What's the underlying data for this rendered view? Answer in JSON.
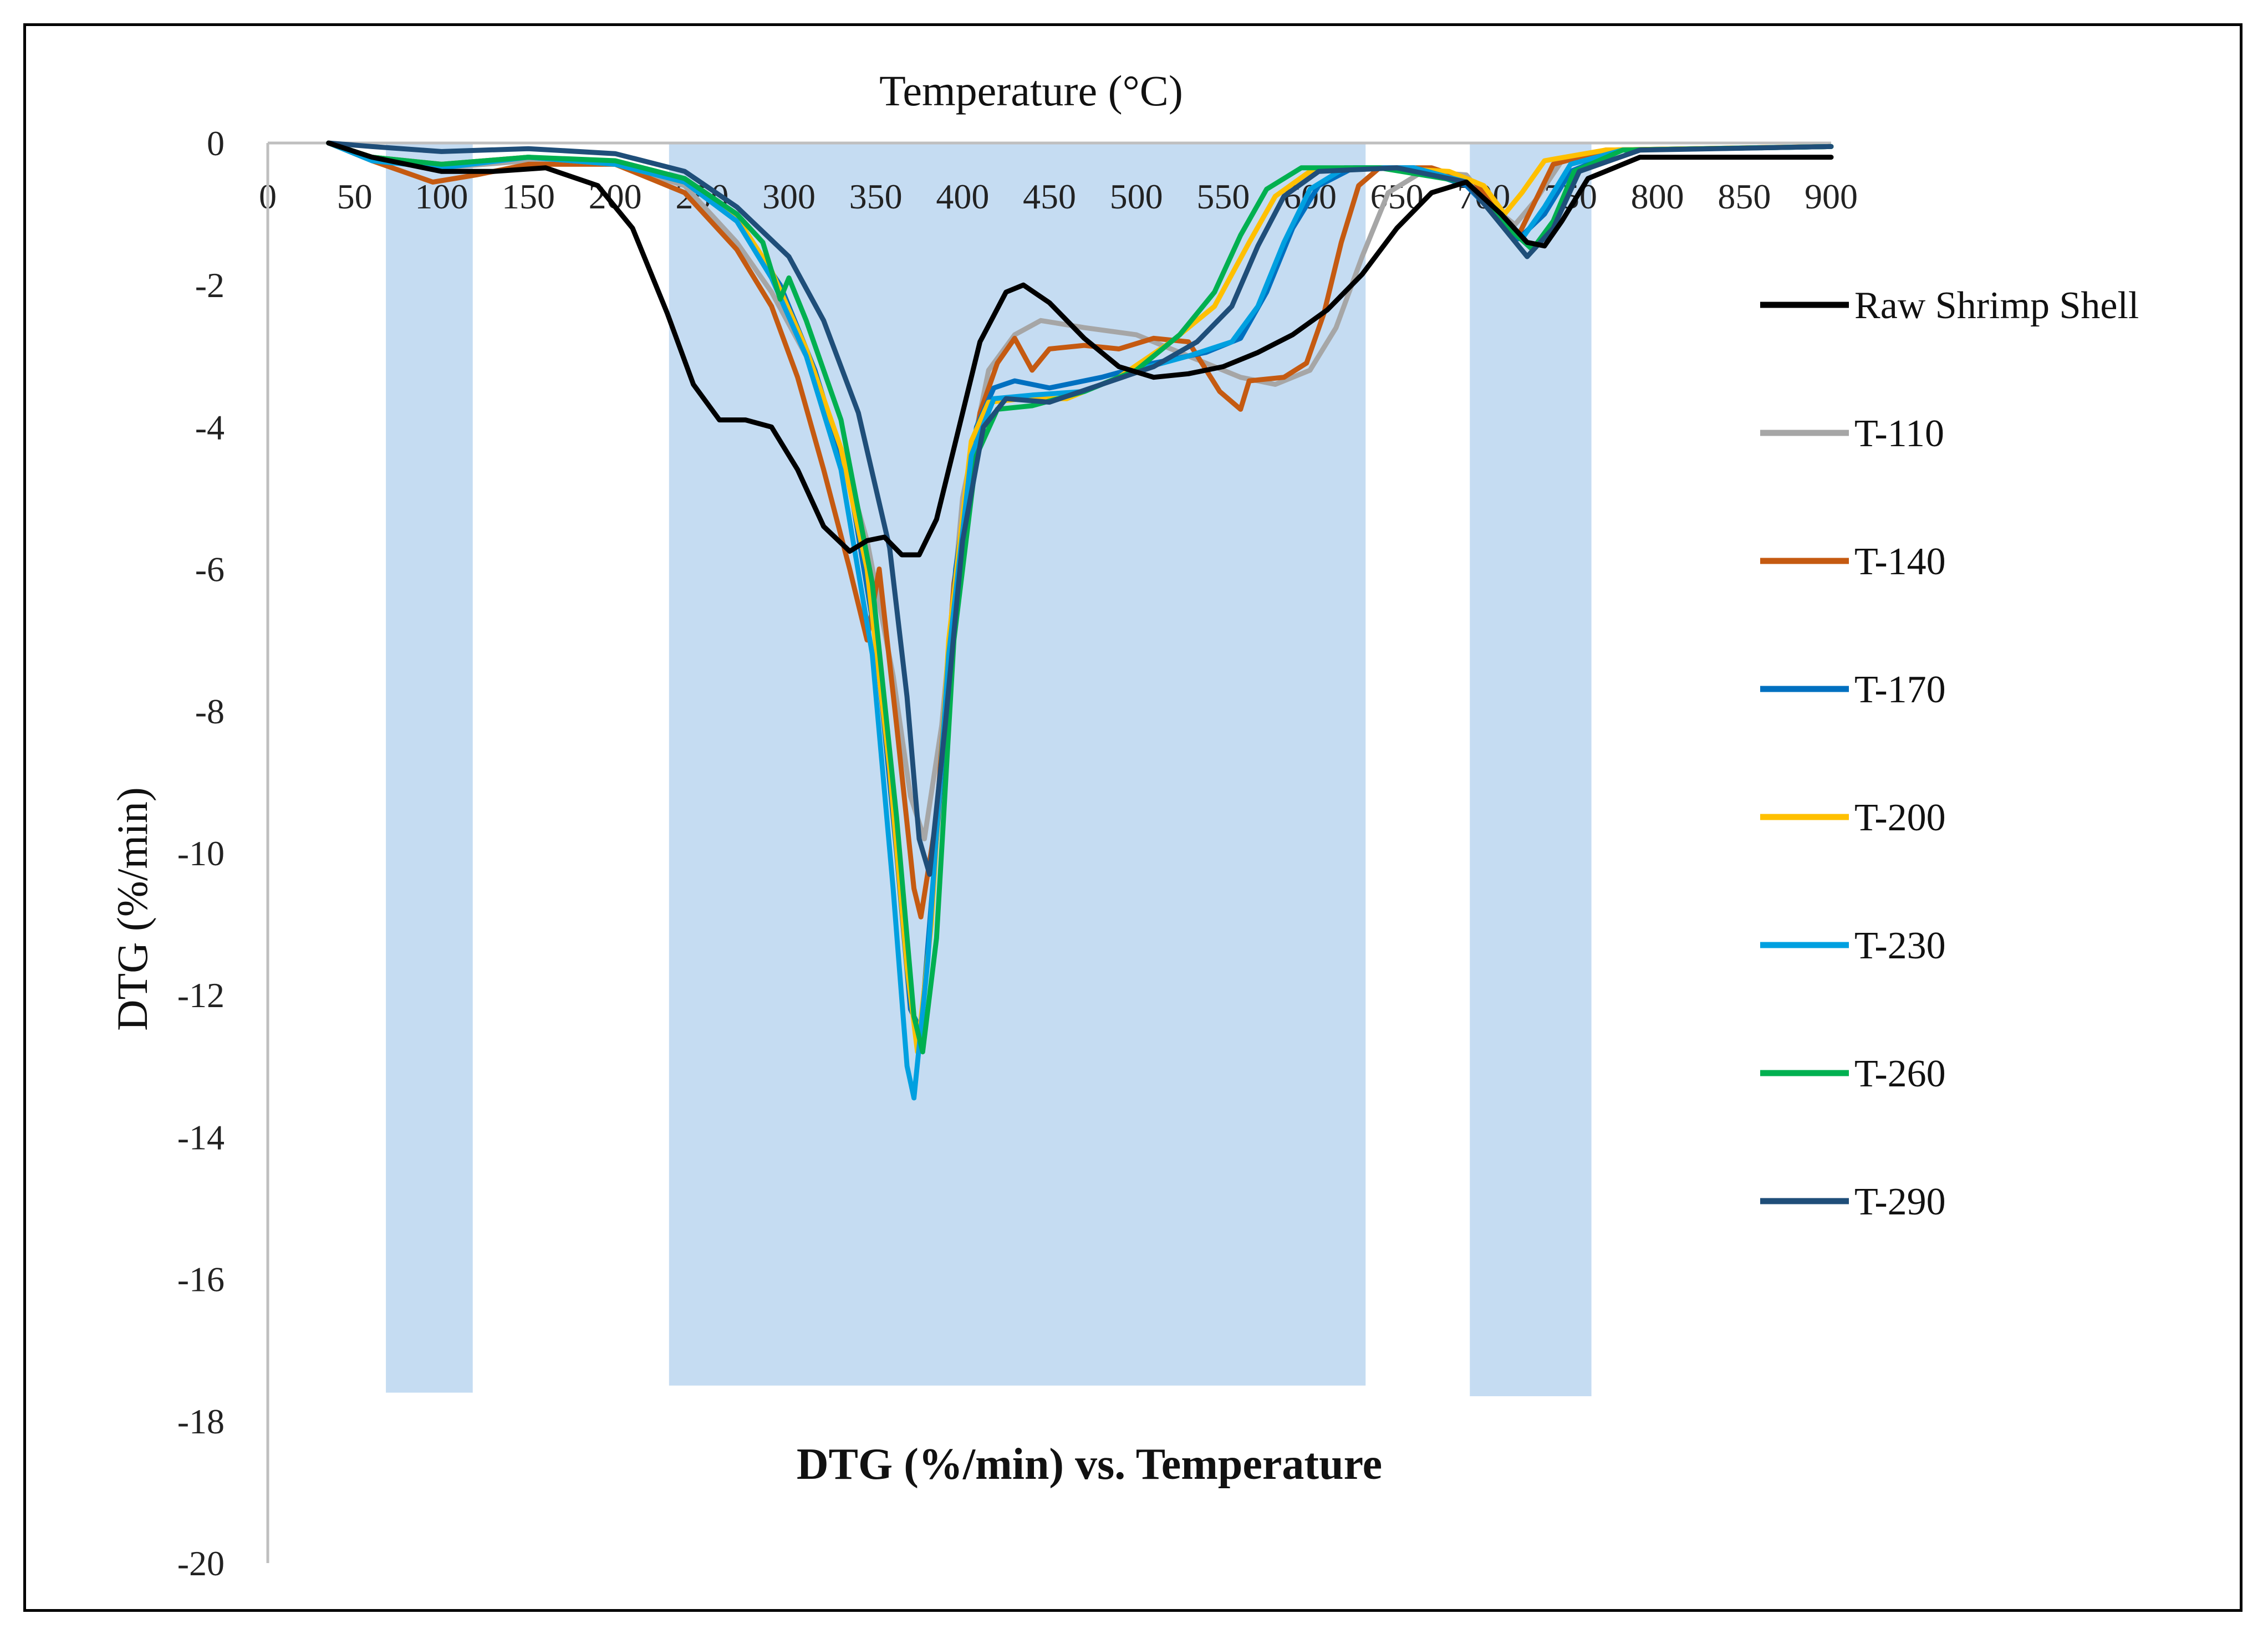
{
  "chart_data": {
    "type": "line",
    "title": "DTG (%/min) vs. Temperature",
    "xlabel": "Temperature (°C)",
    "ylabel": "DTG (%/min)",
    "x_axis_position": "top",
    "xlim": [
      0,
      900
    ],
    "ylim": [
      -20,
      0
    ],
    "x_ticks": [
      0,
      50,
      100,
      150,
      200,
      250,
      300,
      350,
      400,
      450,
      500,
      550,
      600,
      650,
      700,
      750,
      800,
      850,
      900
    ],
    "y_ticks": [
      0,
      -2,
      -4,
      -6,
      -8,
      -10,
      -12,
      -14,
      -16,
      -18,
      -20
    ],
    "legend_position": "right",
    "shaded_ranges": [
      {
        "x0": 68,
        "x1": 118,
        "y0": 0,
        "y1": -17.6
      },
      {
        "x0": 231,
        "x1": 632,
        "y0": 0,
        "y1": -17.5
      },
      {
        "x0": 692,
        "x1": 762,
        "y0": 0,
        "y1": -17.65
      }
    ],
    "series": [
      {
        "name": "Raw Shrimp Shell",
        "color": "#000000",
        "points": [
          [
            35,
            0
          ],
          [
            60,
            -0.2
          ],
          [
            100,
            -0.4
          ],
          [
            130,
            -0.4
          ],
          [
            160,
            -0.35
          ],
          [
            190,
            -0.6
          ],
          [
            210,
            -1.2
          ],
          [
            230,
            -2.4
          ],
          [
            245,
            -3.4
          ],
          [
            260,
            -3.9
          ],
          [
            275,
            -3.9
          ],
          [
            290,
            -4.0
          ],
          [
            305,
            -4.6
          ],
          [
            320,
            -5.4
          ],
          [
            335,
            -5.75
          ],
          [
            345,
            -5.6
          ],
          [
            355,
            -5.55
          ],
          [
            365,
            -5.8
          ],
          [
            375,
            -5.8
          ],
          [
            385,
            -5.3
          ],
          [
            395,
            -4.3
          ],
          [
            410,
            -2.8
          ],
          [
            425,
            -2.1
          ],
          [
            435,
            -2.0
          ],
          [
            450,
            -2.25
          ],
          [
            470,
            -2.75
          ],
          [
            490,
            -3.15
          ],
          [
            510,
            -3.3
          ],
          [
            530,
            -3.25
          ],
          [
            550,
            -3.15
          ],
          [
            570,
            -2.95
          ],
          [
            590,
            -2.7
          ],
          [
            610,
            -2.35
          ],
          [
            630,
            -1.85
          ],
          [
            650,
            -1.2
          ],
          [
            670,
            -0.7
          ],
          [
            690,
            -0.55
          ],
          [
            710,
            -1.0
          ],
          [
            725,
            -1.4
          ],
          [
            735,
            -1.45
          ],
          [
            745,
            -1.1
          ],
          [
            760,
            -0.5
          ],
          [
            790,
            -0.2
          ],
          [
            850,
            -0.2
          ],
          [
            900,
            -0.2
          ]
        ]
      },
      {
        "name": "T-110",
        "color": "#a6a6a6",
        "points": [
          [
            35,
            0
          ],
          [
            60,
            -0.2
          ],
          [
            100,
            -0.35
          ],
          [
            150,
            -0.25
          ],
          [
            200,
            -0.3
          ],
          [
            240,
            -0.6
          ],
          [
            270,
            -1.4
          ],
          [
            290,
            -2.1
          ],
          [
            310,
            -3.0
          ],
          [
            330,
            -4.3
          ],
          [
            345,
            -5.6
          ],
          [
            360,
            -7.5
          ],
          [
            370,
            -9.2
          ],
          [
            378,
            -9.8
          ],
          [
            388,
            -8.2
          ],
          [
            400,
            -5.0
          ],
          [
            415,
            -3.2
          ],
          [
            430,
            -2.7
          ],
          [
            445,
            -2.5
          ],
          [
            470,
            -2.6
          ],
          [
            500,
            -2.7
          ],
          [
            530,
            -3.0
          ],
          [
            560,
            -3.3
          ],
          [
            580,
            -3.4
          ],
          [
            600,
            -3.2
          ],
          [
            615,
            -2.6
          ],
          [
            630,
            -1.6
          ],
          [
            645,
            -0.7
          ],
          [
            665,
            -0.4
          ],
          [
            690,
            -0.45
          ],
          [
            705,
            -0.9
          ],
          [
            718,
            -1.15
          ],
          [
            730,
            -0.8
          ],
          [
            745,
            -0.25
          ],
          [
            770,
            -0.1
          ],
          [
            900,
            -0.05
          ]
        ]
      },
      {
        "name": "T-140",
        "color": "#c55a11",
        "points": [
          [
            35,
            0
          ],
          [
            60,
            -0.25
          ],
          [
            95,
            -0.55
          ],
          [
            120,
            -0.45
          ],
          [
            150,
            -0.3
          ],
          [
            200,
            -0.3
          ],
          [
            240,
            -0.7
          ],
          [
            270,
            -1.5
          ],
          [
            290,
            -2.3
          ],
          [
            305,
            -3.3
          ],
          [
            320,
            -4.6
          ],
          [
            335,
            -6.0
          ],
          [
            345,
            -7.0
          ],
          [
            352,
            -6.0
          ],
          [
            362,
            -8.2
          ],
          [
            372,
            -10.5
          ],
          [
            376,
            -10.9
          ],
          [
            385,
            -9.5
          ],
          [
            395,
            -6.2
          ],
          [
            410,
            -3.8
          ],
          [
            420,
            -3.1
          ],
          [
            430,
            -2.75
          ],
          [
            440,
            -3.2
          ],
          [
            450,
            -2.9
          ],
          [
            470,
            -2.85
          ],
          [
            490,
            -2.9
          ],
          [
            510,
            -2.75
          ],
          [
            530,
            -2.8
          ],
          [
            548,
            -3.5
          ],
          [
            560,
            -3.75
          ],
          [
            565,
            -3.35
          ],
          [
            585,
            -3.3
          ],
          [
            598,
            -3.1
          ],
          [
            608,
            -2.4
          ],
          [
            618,
            -1.4
          ],
          [
            628,
            -0.6
          ],
          [
            640,
            -0.35
          ],
          [
            670,
            -0.35
          ],
          [
            695,
            -0.55
          ],
          [
            710,
            -1.05
          ],
          [
            720,
            -1.3
          ],
          [
            728,
            -0.9
          ],
          [
            740,
            -0.3
          ],
          [
            770,
            -0.1
          ],
          [
            900,
            -0.05
          ]
        ]
      },
      {
        "name": "T-170",
        "color": "#0070c0",
        "points": [
          [
            35,
            0
          ],
          [
            60,
            -0.2
          ],
          [
            100,
            -0.3
          ],
          [
            150,
            -0.2
          ],
          [
            200,
            -0.3
          ],
          [
            240,
            -0.55
          ],
          [
            270,
            -1.1
          ],
          [
            295,
            -2.0
          ],
          [
            315,
            -3.2
          ],
          [
            335,
            -4.8
          ],
          [
            350,
            -7.0
          ],
          [
            362,
            -10.0
          ],
          [
            370,
            -12.2
          ],
          [
            376,
            -12.5
          ],
          [
            386,
            -9.5
          ],
          [
            396,
            -6.0
          ],
          [
            408,
            -4.0
          ],
          [
            418,
            -3.45
          ],
          [
            430,
            -3.35
          ],
          [
            450,
            -3.45
          ],
          [
            480,
            -3.3
          ],
          [
            510,
            -3.1
          ],
          [
            540,
            -2.95
          ],
          [
            560,
            -2.75
          ],
          [
            575,
            -2.1
          ],
          [
            590,
            -1.2
          ],
          [
            605,
            -0.6
          ],
          [
            625,
            -0.35
          ],
          [
            660,
            -0.35
          ],
          [
            690,
            -0.6
          ],
          [
            710,
            -1.1
          ],
          [
            720,
            -1.35
          ],
          [
            735,
            -1.0
          ],
          [
            750,
            -0.4
          ],
          [
            780,
            -0.1
          ],
          [
            900,
            -0.05
          ]
        ]
      },
      {
        "name": "T-200",
        "color": "#ffc000",
        "points": [
          [
            35,
            0
          ],
          [
            60,
            -0.2
          ],
          [
            100,
            -0.3
          ],
          [
            150,
            -0.2
          ],
          [
            200,
            -0.3
          ],
          [
            240,
            -0.55
          ],
          [
            270,
            -1.05
          ],
          [
            290,
            -1.8
          ],
          [
            310,
            -2.9
          ],
          [
            330,
            -4.3
          ],
          [
            345,
            -6.0
          ],
          [
            358,
            -8.8
          ],
          [
            368,
            -11.6
          ],
          [
            374,
            -12.8
          ],
          [
            382,
            -11.0
          ],
          [
            392,
            -7.0
          ],
          [
            405,
            -4.2
          ],
          [
            415,
            -3.65
          ],
          [
            435,
            -3.6
          ],
          [
            460,
            -3.6
          ],
          [
            490,
            -3.3
          ],
          [
            520,
            -2.8
          ],
          [
            545,
            -2.3
          ],
          [
            565,
            -1.4
          ],
          [
            580,
            -0.75
          ],
          [
            600,
            -0.4
          ],
          [
            640,
            -0.35
          ],
          [
            680,
            -0.4
          ],
          [
            700,
            -0.6
          ],
          [
            712,
            -1.0
          ],
          [
            722,
            -0.7
          ],
          [
            735,
            -0.25
          ],
          [
            770,
            -0.1
          ],
          [
            900,
            -0.05
          ]
        ]
      },
      {
        "name": "T-230",
        "color": "#00a0e0",
        "points": [
          [
            35,
            0
          ],
          [
            60,
            -0.25
          ],
          [
            100,
            -0.35
          ],
          [
            150,
            -0.2
          ],
          [
            200,
            -0.3
          ],
          [
            240,
            -0.55
          ],
          [
            270,
            -1.1
          ],
          [
            290,
            -1.9
          ],
          [
            310,
            -3.0
          ],
          [
            330,
            -4.6
          ],
          [
            348,
            -7.2
          ],
          [
            360,
            -10.5
          ],
          [
            368,
            -13.0
          ],
          [
            372,
            -13.45
          ],
          [
            380,
            -11.5
          ],
          [
            392,
            -7.2
          ],
          [
            405,
            -4.4
          ],
          [
            418,
            -3.6
          ],
          [
            440,
            -3.55
          ],
          [
            470,
            -3.5
          ],
          [
            500,
            -3.2
          ],
          [
            530,
            -3.0
          ],
          [
            555,
            -2.8
          ],
          [
            570,
            -2.3
          ],
          [
            585,
            -1.4
          ],
          [
            600,
            -0.65
          ],
          [
            620,
            -0.35
          ],
          [
            660,
            -0.35
          ],
          [
            690,
            -0.55
          ],
          [
            710,
            -1.1
          ],
          [
            722,
            -1.35
          ],
          [
            735,
            -0.9
          ],
          [
            750,
            -0.3
          ],
          [
            780,
            -0.1
          ],
          [
            900,
            -0.05
          ]
        ]
      },
      {
        "name": "T-260",
        "color": "#00b050",
        "points": [
          [
            35,
            0
          ],
          [
            60,
            -0.2
          ],
          [
            100,
            -0.3
          ],
          [
            150,
            -0.2
          ],
          [
            200,
            -0.25
          ],
          [
            240,
            -0.5
          ],
          [
            270,
            -1.0
          ],
          [
            285,
            -1.4
          ],
          [
            295,
            -2.2
          ],
          [
            300,
            -1.9
          ],
          [
            310,
            -2.5
          ],
          [
            330,
            -3.9
          ],
          [
            348,
            -6.2
          ],
          [
            362,
            -9.5
          ],
          [
            372,
            -12.3
          ],
          [
            377,
            -12.8
          ],
          [
            385,
            -11.2
          ],
          [
            395,
            -7.0
          ],
          [
            408,
            -4.4
          ],
          [
            420,
            -3.75
          ],
          [
            440,
            -3.7
          ],
          [
            470,
            -3.5
          ],
          [
            500,
            -3.2
          ],
          [
            525,
            -2.7
          ],
          [
            545,
            -2.1
          ],
          [
            560,
            -1.3
          ],
          [
            575,
            -0.65
          ],
          [
            595,
            -0.35
          ],
          [
            640,
            -0.35
          ],
          [
            690,
            -0.55
          ],
          [
            710,
            -1.1
          ],
          [
            728,
            -1.5
          ],
          [
            740,
            -1.1
          ],
          [
            752,
            -0.4
          ],
          [
            780,
            -0.1
          ],
          [
            900,
            -0.05
          ]
        ]
      },
      {
        "name": "T-290",
        "color": "#1f4e79",
        "points": [
          [
            35,
            0
          ],
          [
            60,
            -0.05
          ],
          [
            100,
            -0.12
          ],
          [
            150,
            -0.08
          ],
          [
            200,
            -0.15
          ],
          [
            240,
            -0.4
          ],
          [
            270,
            -0.9
          ],
          [
            300,
            -1.6
          ],
          [
            320,
            -2.5
          ],
          [
            340,
            -3.8
          ],
          [
            358,
            -5.7
          ],
          [
            368,
            -7.8
          ],
          [
            375,
            -9.8
          ],
          [
            381,
            -10.3
          ],
          [
            390,
            -8.2
          ],
          [
            400,
            -5.6
          ],
          [
            412,
            -4.0
          ],
          [
            425,
            -3.6
          ],
          [
            450,
            -3.65
          ],
          [
            480,
            -3.4
          ],
          [
            510,
            -3.15
          ],
          [
            535,
            -2.8
          ],
          [
            555,
            -2.3
          ],
          [
            570,
            -1.45
          ],
          [
            585,
            -0.75
          ],
          [
            605,
            -0.4
          ],
          [
            650,
            -0.35
          ],
          [
            690,
            -0.55
          ],
          [
            710,
            -1.15
          ],
          [
            725,
            -1.6
          ],
          [
            740,
            -1.2
          ],
          [
            755,
            -0.4
          ],
          [
            790,
            -0.1
          ],
          [
            900,
            -0.05
          ]
        ]
      }
    ]
  }
}
